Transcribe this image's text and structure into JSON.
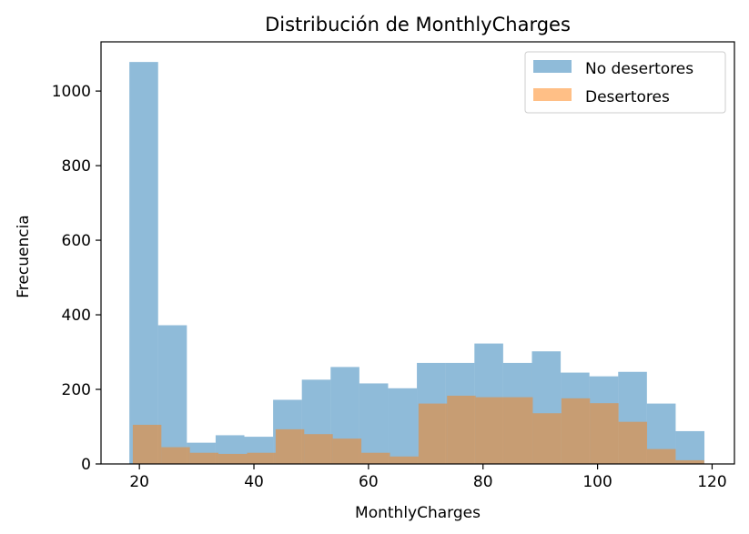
{
  "chart_data": {
    "type": "bar",
    "title": "Distribución de MonthlyCharges",
    "xlabel": "MonthlyCharges",
    "ylabel": "Frecuencia",
    "xlim": [
      13.3,
      123.9
    ],
    "ylim": [
      0,
      1132
    ],
    "xticks": [
      20,
      40,
      60,
      80,
      100,
      120
    ],
    "yticks": [
      0,
      200,
      400,
      600,
      800,
      1000
    ],
    "legend_position": "top-right",
    "grid": false,
    "series": [
      {
        "name": "No desertores",
        "color": "#1f77b4",
        "opacity": 0.5,
        "bins": [
          18.25,
          23.27,
          28.29,
          33.31,
          38.33,
          43.35,
          48.37,
          53.39,
          58.41,
          63.43,
          68.45,
          73.48,
          78.5,
          83.52,
          88.54,
          93.56,
          98.58,
          103.6,
          108.62,
          113.64,
          118.66
        ],
        "values": [
          1078,
          372,
          57,
          77,
          73,
          172,
          226,
          260,
          216,
          203,
          271,
          271,
          323,
          271,
          302,
          245,
          235,
          247,
          162,
          88
        ]
      },
      {
        "name": "Desertores",
        "color": "#ff7f0e",
        "opacity": 0.5,
        "bins": [
          18.85,
          23.84,
          28.82,
          33.81,
          38.8,
          43.79,
          48.78,
          53.77,
          58.76,
          63.75,
          68.74,
          73.72,
          78.71,
          83.7,
          88.69,
          93.68,
          98.67,
          103.66,
          108.65,
          113.64,
          118.63
        ],
        "values": [
          105,
          45,
          30,
          27,
          30,
          93,
          80,
          68,
          30,
          20,
          162,
          183,
          179,
          179,
          136,
          176,
          163,
          113,
          40,
          10
        ]
      }
    ]
  }
}
